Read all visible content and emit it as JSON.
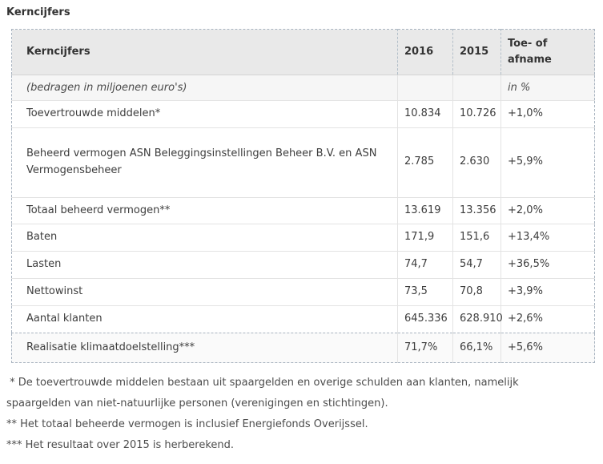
{
  "page": {
    "title": "Kerncijfers"
  },
  "table": {
    "columns": [
      "Kerncijfers",
      "2016",
      "2015",
      "Toe- of afname"
    ],
    "subheader": {
      "label": "(bedragen in miljoenen euro's)",
      "unit": "in %"
    },
    "rows": [
      {
        "label": "Toevertrouwde middelen*",
        "y2016": "10.834",
        "y2015": "10.726",
        "change": "+1,0%",
        "tall": false,
        "footer": false
      },
      {
        "label": "Beheerd vermogen ASN Beleggingsinstellingen Beheer B.V. en ASN Vermogensbeheer",
        "y2016": "2.785",
        "y2015": "2.630",
        "change": "+5,9%",
        "tall": true,
        "footer": false
      },
      {
        "label": "Totaal beheerd vermogen**",
        "y2016": "13.619",
        "y2015": "13.356",
        "change": "+2,0%",
        "tall": false,
        "footer": false
      },
      {
        "label": "Baten",
        "y2016": "171,9",
        "y2015": "151,6",
        "change": "+13,4%",
        "tall": false,
        "footer": false
      },
      {
        "label": "Lasten",
        "y2016": "74,7",
        "y2015": "54,7",
        "change": "+36,5%",
        "tall": false,
        "footer": false
      },
      {
        "label": "Nettowinst",
        "y2016": "73,5",
        "y2015": "70,8",
        "change": "+3,9%",
        "tall": false,
        "footer": false
      },
      {
        "label": "Aantal klanten",
        "y2016": "645.336",
        "y2015": "628.910",
        "change": "+2,6%",
        "tall": false,
        "footer": false
      },
      {
        "label": "Realisatie klimaatdoelstelling***",
        "y2016": "71,7%",
        "y2015": "66,1%",
        "change": "+5,6%",
        "tall": false,
        "footer": true
      }
    ]
  },
  "footnotes": [
    " * De toevertrouwde middelen bestaan uit spaargelden en overige schulden aan klanten, namelijk\nspaargelden van niet-natuurlijke personen (verenigingen en stichtingen).",
    "** Het totaal beheerde vermogen is inclusief Energiefonds Overijssel.",
    "*** Het resultaat over 2015 is herberekend."
  ],
  "colors": {
    "border_dashed": "#a9b4c0",
    "header_bg": "#e9e9e9",
    "subheader_bg": "#f6f6f6",
    "footer_bg": "#fafafa",
    "row_separator": "#e3e3e3",
    "body_text": "#3d3d3d",
    "title_text": "#333333"
  }
}
